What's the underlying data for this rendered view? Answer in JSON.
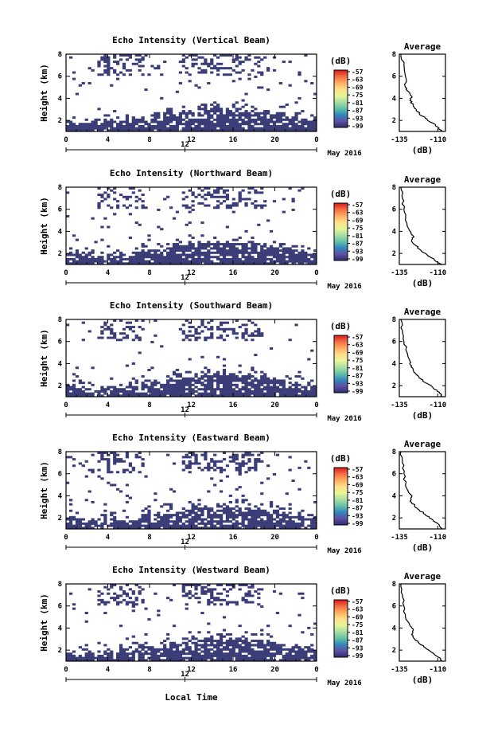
{
  "figure": {
    "x_axis_label": "Local Time",
    "date_label": "May 2016",
    "mid_date_label": "12",
    "x_ticks": [
      "0",
      "4",
      "8",
      "12",
      "16",
      "20",
      "0"
    ],
    "y_ticks": [
      "2",
      "4",
      "6",
      "8"
    ],
    "y_axis_label": "Height (km)",
    "colorbar_unit": "(dB)",
    "colorbar_ticks": [
      "-57",
      "-63",
      "-69",
      "-75",
      "-81",
      "-87",
      "-93",
      "-99"
    ],
    "colorbar_colors": [
      "#d7191c",
      "#f46d43",
      "#fdae61",
      "#fee08b",
      "#e6f598",
      "#abdda4",
      "#66c2a5",
      "#3288bd",
      "#5e4fa2",
      "#2d2d6e"
    ],
    "fill_color": "#3b3d78",
    "avg_title": "Average",
    "avg_xlabel": "(dB)",
    "avg_x_ticks": [
      "-135",
      "-110"
    ]
  },
  "chart_data": [
    {
      "type": "heatmap",
      "title": "Echo Intensity (Vertical Beam)",
      "xlabel": "",
      "ylabel": "Height (km)",
      "xlim": [
        0,
        24
      ],
      "ylim": [
        1,
        8
      ],
      "colorbar_range": [
        -99,
        -57
      ],
      "profile": {
        "type": "line",
        "title": "Average",
        "xlabel": "(dB)",
        "xlim": [
          -135,
          -105
        ],
        "ylim": [
          1,
          8
        ],
        "x": [
          -134,
          -132,
          -131,
          -131,
          -129,
          -127,
          -128,
          -126,
          -124,
          -122,
          -118,
          -114,
          -110,
          -107
        ],
        "y": [
          8,
          7,
          6,
          5,
          4.6,
          4.2,
          3.8,
          3.4,
          3.0,
          2.6,
          2.2,
          1.8,
          1.4,
          1.0
        ]
      }
    },
    {
      "type": "heatmap",
      "title": "Echo Intensity (Northward Beam)",
      "xlabel": "",
      "ylabel": "Height (km)",
      "xlim": [
        0,
        24
      ],
      "ylim": [
        1,
        8
      ],
      "colorbar_range": [
        -99,
        -57
      ],
      "profile": {
        "type": "line",
        "title": "Average",
        "xlabel": "(dB)",
        "xlim": [
          -135,
          -105
        ],
        "ylim": [
          1,
          8
        ],
        "x": [
          -134,
          -133,
          -132,
          -131,
          -128,
          -126,
          -127,
          -125,
          -122,
          -118,
          -114,
          -110,
          -107
        ],
        "y": [
          8,
          7,
          6,
          5,
          4.0,
          3.6,
          3.2,
          2.8,
          2.4,
          2.0,
          1.6,
          1.2,
          1.0
        ]
      }
    },
    {
      "type": "heatmap",
      "title": "Echo Intensity (Southward Beam)",
      "xlabel": "",
      "ylabel": "Height (km)",
      "xlim": [
        0,
        24
      ],
      "ylim": [
        1,
        8
      ],
      "colorbar_range": [
        -99,
        -57
      ],
      "profile": {
        "type": "line",
        "title": "Average",
        "xlabel": "(dB)",
        "xlim": [
          -135,
          -105
        ],
        "ylim": [
          1,
          8
        ],
        "x": [
          -134,
          -133,
          -132,
          -130,
          -128,
          -127,
          -126,
          -124,
          -121,
          -117,
          -113,
          -109,
          -107
        ],
        "y": [
          8,
          7,
          6,
          5,
          4.2,
          3.8,
          3.4,
          3.0,
          2.6,
          2.2,
          1.8,
          1.4,
          1.0
        ]
      }
    },
    {
      "type": "heatmap",
      "title": "Echo Intensity (Eastward Beam)",
      "xlabel": "",
      "ylabel": "Height (km)",
      "xlim": [
        0,
        24
      ],
      "ylim": [
        1,
        8
      ],
      "colorbar_range": [
        -99,
        -57
      ],
      "profile": {
        "type": "line",
        "title": "Average",
        "xlabel": "(dB)",
        "xlim": [
          -135,
          -105
        ],
        "ylim": [
          1,
          8
        ],
        "x": [
          -134,
          -133,
          -132,
          -131,
          -129,
          -127,
          -128,
          -125,
          -122,
          -118,
          -114,
          -110,
          -107
        ],
        "y": [
          8,
          7,
          6,
          5,
          4.3,
          3.9,
          3.5,
          3.1,
          2.7,
          2.3,
          1.9,
          1.5,
          1.0
        ]
      }
    },
    {
      "type": "heatmap",
      "title": "Echo Intensity (Westward Beam)",
      "xlabel": "Local Time",
      "ylabel": "Height (km)",
      "xlim": [
        0,
        24
      ],
      "ylim": [
        1,
        8
      ],
      "colorbar_range": [
        -99,
        -57
      ],
      "profile": {
        "type": "line",
        "title": "Average",
        "xlabel": "(dB)",
        "xlim": [
          -135,
          -105
        ],
        "ylim": [
          1,
          8
        ],
        "x": [
          -134,
          -133,
          -132,
          -131,
          -128,
          -126,
          -127,
          -125,
          -122,
          -118,
          -114,
          -110,
          -107
        ],
        "y": [
          8,
          7,
          6,
          5,
          4.2,
          3.8,
          3.4,
          3.0,
          2.6,
          2.2,
          1.8,
          1.4,
          1.0
        ]
      }
    }
  ]
}
